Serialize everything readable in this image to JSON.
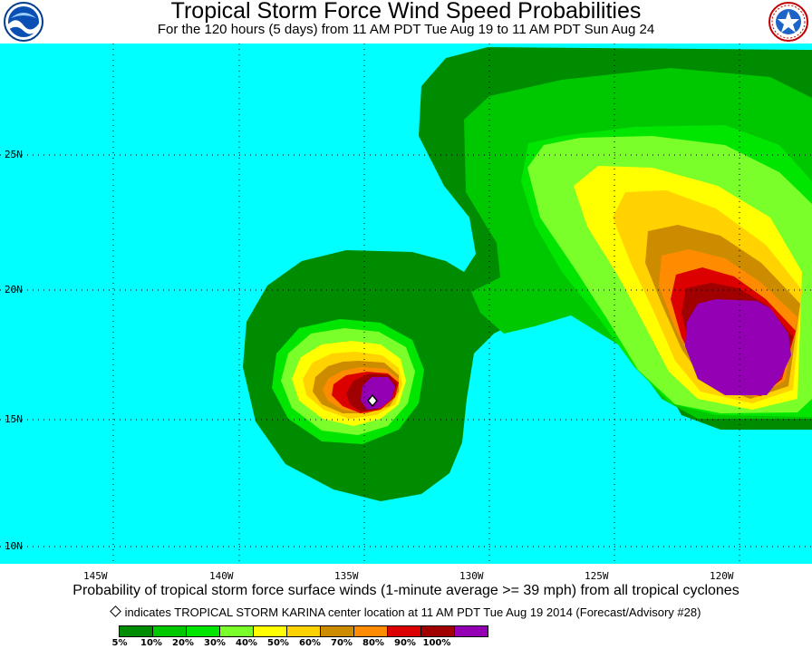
{
  "header": {
    "title": "Tropical Storm Force Wind Speed Probabilities",
    "subtitle": "For the 120 hours (5 days) from 11 AM PDT Tue Aug 19 to 11 AM PDT Sun Aug 24"
  },
  "logos": {
    "left": "noaa-logo",
    "right": "nws-logo"
  },
  "map": {
    "ocean_color": "#00ffff",
    "longitude_labels": [
      "145W",
      "140W",
      "135W",
      "130W",
      "125W",
      "120W"
    ],
    "latitude_labels": [
      "25N",
      "20N",
      "15N",
      "10N"
    ]
  },
  "caption": "Probability of tropical storm force surface winds (1-minute average >= 39 mph) from all tropical cyclones",
  "note": "indicates TROPICAL STORM KARINA center location at 11 AM PDT Tue Aug 19 2014 (Forecast/Advisory #28)",
  "legend": {
    "labels": [
      "5%",
      "10%",
      "20%",
      "30%",
      "40%",
      "50%",
      "60%",
      "70%",
      "80%",
      "90%",
      "100%"
    ],
    "colors": [
      "#008c00",
      "#00c800",
      "#00e600",
      "#7aff2a",
      "#ffff00",
      "#ffd200",
      "#cd8c00",
      "#ff8c00",
      "#dc0000",
      "#a00000",
      "#9400b4"
    ]
  }
}
